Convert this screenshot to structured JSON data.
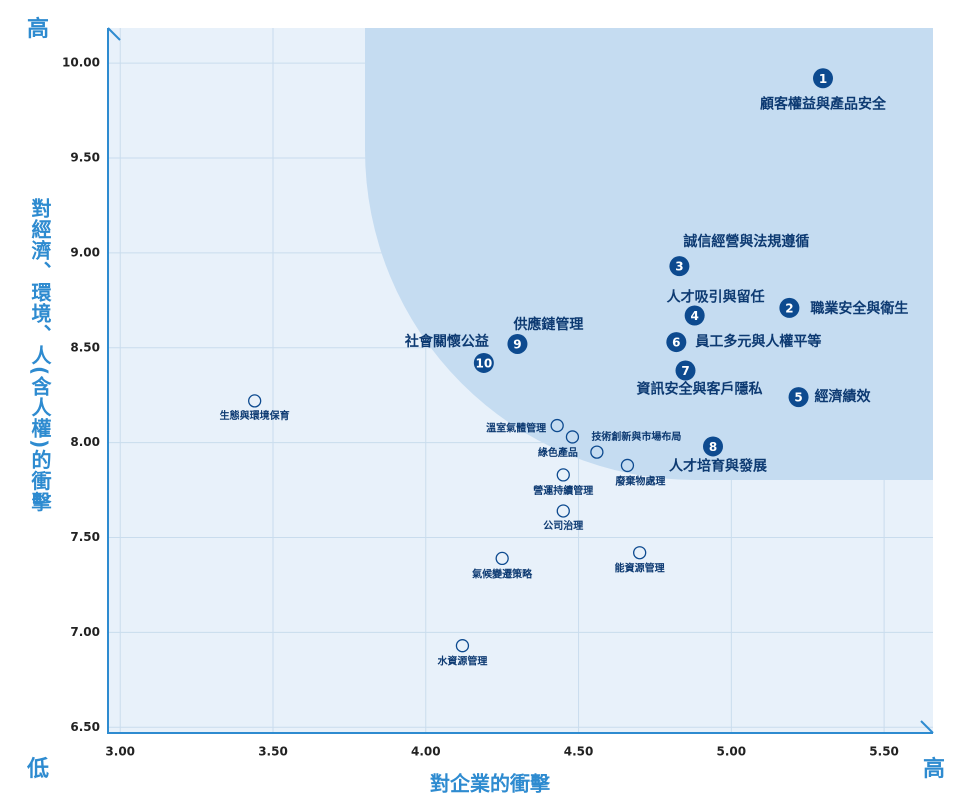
{
  "chart_data": {
    "type": "scatter",
    "x_label": "對企業的衝擊",
    "y_label": "對經濟、環境、人(含人權)的衝擊",
    "corner_high_y": "高",
    "corner_low": "低",
    "corner_high_x": "高",
    "xlim": [
      2.96,
      5.66
    ],
    "ylim": [
      6.47,
      10.185
    ],
    "xticks": [
      {
        "value": 3,
        "label": "3.00"
      },
      {
        "value": 3.5,
        "label": "3.50"
      },
      {
        "value": 4,
        "label": "4.00"
      },
      {
        "value": 4.5,
        "label": "4.50"
      },
      {
        "value": 5,
        "label": "5.00"
      },
      {
        "value": 5.5,
        "label": "5.50"
      }
    ],
    "yticks": [
      {
        "value": 6.5,
        "label": "6.50"
      },
      {
        "value": 7,
        "label": "7.00"
      },
      {
        "value": 7.5,
        "label": "7.50"
      },
      {
        "value": 8,
        "label": "8.00"
      },
      {
        "value": 8.5,
        "label": "8.50"
      },
      {
        "value": 9,
        "label": "9.00"
      },
      {
        "value": 9.5,
        "label": "9.50"
      },
      {
        "value": 10,
        "label": "10.00"
      }
    ],
    "grid": true,
    "points": [
      {
        "number": "1",
        "label": "顧客權益與產品安全",
        "x": 5.3,
        "y": 9.92
      },
      {
        "number": "2",
        "label": "職業安全與衛生",
        "x": 5.19,
        "y": 8.71
      },
      {
        "number": "3",
        "label": "誠信經營與法規遵循",
        "x": 4.83,
        "y": 8.93
      },
      {
        "number": "4",
        "label": "人才吸引與留任",
        "x": 4.88,
        "y": 8.67
      },
      {
        "number": "5",
        "label": "經濟績效",
        "x": 5.22,
        "y": 8.24
      },
      {
        "number": "6",
        "label": "員工多元與人權平等",
        "x": 4.82,
        "y": 8.53
      },
      {
        "number": "7",
        "label": "資訊安全與客戶隱私",
        "x": 4.85,
        "y": 8.38
      },
      {
        "number": "8",
        "label": "人才培育與發展",
        "x": 4.94,
        "y": 7.98
      },
      {
        "number": "9",
        "label": "供應鏈管理",
        "x": 4.3,
        "y": 8.52
      },
      {
        "number": "10",
        "label": "社會關懷公益",
        "x": 4.19,
        "y": 8.42
      },
      {
        "label": "生態與環境保育",
        "x": 3.44,
        "y": 8.22
      },
      {
        "label": "溫室氣體管理",
        "x": 4.43,
        "y": 8.09
      },
      {
        "label": "技術創新與市場布局",
        "x": 4.48,
        "y": 8.03
      },
      {
        "label": "綠色產品",
        "x": 4.56,
        "y": 7.95
      },
      {
        "label": "廢棄物處理",
        "x": 4.66,
        "y": 7.88
      },
      {
        "label": "營運持續管理",
        "x": 4.45,
        "y": 7.83
      },
      {
        "label": "公司治理",
        "x": 4.45,
        "y": 7.64
      },
      {
        "label": "能資源管理",
        "x": 4.7,
        "y": 7.42
      },
      {
        "label": "氣候變遷策略",
        "x": 4.25,
        "y": 7.39
      },
      {
        "label": "水資源管理",
        "x": 4.12,
        "y": 6.93
      }
    ]
  }
}
